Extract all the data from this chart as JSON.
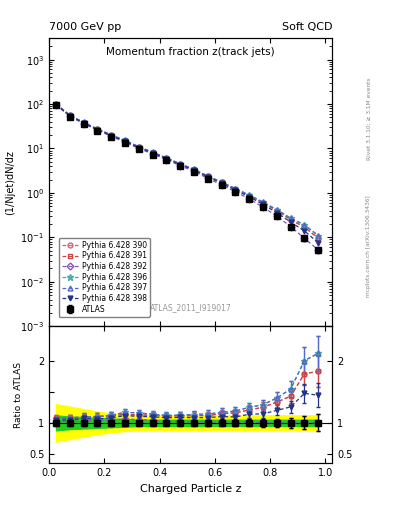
{
  "title_main": "Momentum fraction z(track jets)",
  "title_top_left": "7000 GeV pp",
  "title_top_right": "Soft QCD",
  "ylabel_main": "(1/Njet)dN/dz",
  "ylabel_ratio": "Ratio to ATLAS",
  "xlabel": "Charged Particle z",
  "right_label_top": "Rivet 3.1.10; ≥ 3.1M events",
  "right_label_bot": "mcplots.cern.ch [arXiv:1306.3436]",
  "watermark": "ATLAS_2011_I919017",
  "ylim_main": [
    0.001,
    3000
  ],
  "ylim_ratio": [
    0.35,
    2.55
  ],
  "xmin": 0.0,
  "xmax": 1.025,
  "band_green": "#22cc22",
  "band_yellow": "#ffff00",
  "series_colors": {
    "390": "#cc6677",
    "391": "#cc4444",
    "392": "#8855bb",
    "396": "#44aaaa",
    "397": "#5566cc",
    "398": "#223388"
  },
  "legend_entries": [
    "ATLAS",
    "Pythia 6.428 390",
    "Pythia 6.428 391",
    "Pythia 6.428 392",
    "Pythia 6.428 396",
    "Pythia 6.428 397",
    "Pythia 6.428 398"
  ],
  "z_bins": [
    0.025,
    0.075,
    0.125,
    0.175,
    0.225,
    0.275,
    0.325,
    0.375,
    0.425,
    0.475,
    0.525,
    0.575,
    0.625,
    0.675,
    0.725,
    0.775,
    0.825,
    0.875,
    0.925,
    0.975
  ],
  "atlas_values": [
    93,
    52,
    35,
    25,
    18,
    13,
    9.5,
    7.2,
    5.5,
    4.0,
    3.0,
    2.1,
    1.5,
    1.05,
    0.72,
    0.48,
    0.3,
    0.175,
    0.095,
    0.052
  ],
  "atlas_errors": [
    4,
    2.5,
    1.8,
    1.2,
    0.9,
    0.65,
    0.45,
    0.35,
    0.28,
    0.2,
    0.15,
    0.11,
    0.082,
    0.06,
    0.042,
    0.03,
    0.02,
    0.014,
    0.01,
    0.007
  ],
  "py390_values": [
    100,
    56,
    38,
    27.5,
    20,
    14.8,
    10.7,
    8.1,
    6.1,
    4.45,
    3.35,
    2.35,
    1.72,
    1.22,
    0.87,
    0.6,
    0.4,
    0.25,
    0.17,
    0.095
  ],
  "py391_values": [
    100,
    56,
    38,
    27.5,
    20,
    14.8,
    10.7,
    8.1,
    6.1,
    4.45,
    3.35,
    2.35,
    1.72,
    1.22,
    0.87,
    0.6,
    0.4,
    0.25,
    0.17,
    0.095
  ],
  "py392_values": [
    95,
    53,
    36,
    26,
    18.8,
    13.8,
    10.0,
    7.5,
    5.6,
    4.1,
    3.05,
    2.12,
    1.52,
    1.06,
    0.73,
    0.48,
    0.3,
    0.175,
    0.095,
    0.052
  ],
  "py396_values": [
    99,
    56,
    38.5,
    27.5,
    20.2,
    15.2,
    11.0,
    8.2,
    6.15,
    4.5,
    3.4,
    2.4,
    1.75,
    1.25,
    0.9,
    0.62,
    0.42,
    0.27,
    0.19,
    0.11
  ],
  "py397_values": [
    99,
    56,
    38.5,
    27.5,
    20.2,
    15.2,
    11.0,
    8.2,
    6.15,
    4.5,
    3.4,
    2.4,
    1.75,
    1.25,
    0.9,
    0.62,
    0.42,
    0.27,
    0.19,
    0.11
  ],
  "py398_values": [
    97,
    54.5,
    37.5,
    26.5,
    19.5,
    14.5,
    10.5,
    7.9,
    5.95,
    4.35,
    3.25,
    2.28,
    1.65,
    1.15,
    0.82,
    0.55,
    0.36,
    0.22,
    0.14,
    0.075
  ],
  "green_band_lo": [
    0.88,
    0.9,
    0.91,
    0.92,
    0.93,
    0.94,
    0.95,
    0.95,
    0.95,
    0.95,
    0.95,
    0.95,
    0.95,
    0.95,
    0.95,
    0.95,
    0.95,
    0.95,
    0.95,
    0.95
  ],
  "green_band_hi": [
    1.12,
    1.1,
    1.09,
    1.08,
    1.07,
    1.06,
    1.05,
    1.05,
    1.05,
    1.05,
    1.05,
    1.05,
    1.05,
    1.05,
    1.05,
    1.05,
    1.05,
    1.05,
    1.05,
    1.05
  ],
  "yellow_band_lo": [
    0.7,
    0.74,
    0.78,
    0.82,
    0.85,
    0.87,
    0.88,
    0.88,
    0.88,
    0.88,
    0.88,
    0.88,
    0.88,
    0.88,
    0.88,
    0.88,
    0.88,
    0.88,
    0.88,
    0.88
  ],
  "yellow_band_hi": [
    1.3,
    1.26,
    1.22,
    1.18,
    1.15,
    1.13,
    1.12,
    1.12,
    1.12,
    1.12,
    1.12,
    1.12,
    1.12,
    1.12,
    1.12,
    1.12,
    1.12,
    1.12,
    1.12,
    1.12
  ]
}
